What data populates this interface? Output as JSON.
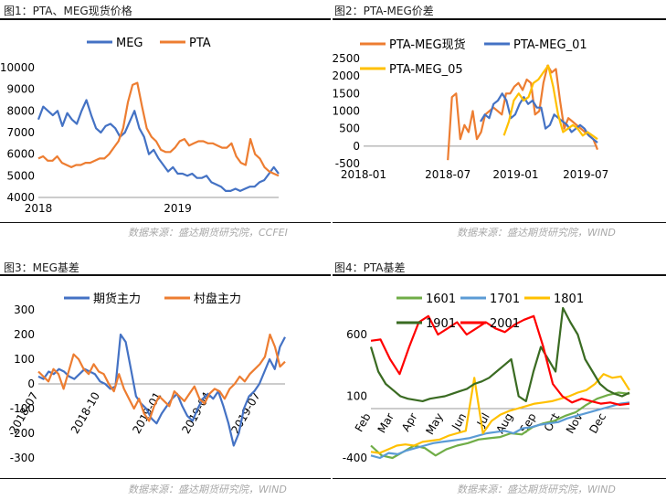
{
  "panels": [
    {
      "title": "图1：PTA、MEG现货价格",
      "source": "数据来源：盛达期货研究院，CCFEI"
    },
    {
      "title": "图2：PTA-MEG价差",
      "source": "数据来源：盛达期货研究院，WIND"
    },
    {
      "title": "图3：MEG基差",
      "source": "数据来源：盛达期货研究院，WIND"
    },
    {
      "title": "图4：PTA基差",
      "source": "数据来源：盛达期货研究院，WIND"
    }
  ],
  "chart_data": [
    {
      "type": "line",
      "ylim": [
        4000,
        10000
      ],
      "yticks": [
        4000,
        5000,
        6000,
        7000,
        8000,
        9000,
        10000
      ],
      "xticks": [
        {
          "label": "2018",
          "t": 0.0
        },
        {
          "label": "2019",
          "t": 0.58
        }
      ],
      "series": [
        {
          "name": "MEG",
          "color": "#4472C4",
          "values": [
            7600,
            8200,
            8000,
            7800,
            8000,
            7300,
            7900,
            7600,
            7400,
            8000,
            8500,
            7800,
            7200,
            7000,
            7300,
            7400,
            7200,
            6800,
            7000,
            7500,
            8000,
            7200,
            6800,
            6000,
            6200,
            5800,
            5500,
            5200,
            5400,
            5100,
            5100,
            5000,
            5100,
            4900,
            4900,
            5000,
            4700,
            4600,
            4500,
            4300,
            4300,
            4400,
            4300,
            4400,
            4500,
            4500,
            4700,
            4800,
            5100,
            5400,
            5100
          ]
        },
        {
          "name": "PTA",
          "color": "#ED7D31",
          "values": [
            5800,
            5900,
            5700,
            5700,
            5900,
            5600,
            5500,
            5400,
            5500,
            5500,
            5600,
            5600,
            5700,
            5800,
            5800,
            6000,
            6300,
            6600,
            7200,
            8400,
            9200,
            9300,
            8200,
            7200,
            6800,
            6600,
            6200,
            6100,
            6100,
            6300,
            6600,
            6700,
            6400,
            6500,
            6600,
            6600,
            6500,
            6500,
            6400,
            6300,
            6300,
            6500,
            5900,
            5600,
            5500,
            6700,
            6000,
            5800,
            5400,
            5200,
            5100,
            5000
          ]
        }
      ]
    },
    {
      "type": "line",
      "ylim": [
        -500,
        2500
      ],
      "yticks": [
        -500,
        0,
        500,
        1000,
        1500,
        2000,
        2500
      ],
      "xticks": [
        {
          "label": "2018-01",
          "t": 0.0
        },
        {
          "label": "2018-07",
          "t": 0.36
        },
        {
          "label": "2019-01",
          "t": 0.65
        },
        {
          "label": "2019-07",
          "t": 0.95
        }
      ],
      "series": [
        {
          "name": "PTA-MEG现货",
          "color": "#ED7D31",
          "start": 0.36,
          "values": [
            -400,
            1400,
            1500,
            200,
            600,
            400,
            1000,
            200,
            400,
            900,
            1000,
            1100,
            1000,
            900,
            1500,
            1500,
            1700,
            1800,
            1600,
            1900,
            1800,
            900,
            1000,
            1800,
            2300,
            2100,
            2200,
            1300,
            500,
            800,
            700,
            600,
            500,
            400,
            300,
            200,
            -100
          ]
        },
        {
          "name": "PTA-MEG_01",
          "color": "#4472C4",
          "start": 0.5,
          "values": [
            700,
            900,
            800,
            1200,
            1300,
            1500,
            1300,
            800,
            900,
            1200,
            1400,
            1200,
            1300,
            1100,
            1100,
            500,
            600,
            900,
            800,
            700,
            600,
            400,
            500,
            600,
            500,
            300,
            200,
            100
          ]
        },
        {
          "name": "PTA-MEG_05",
          "color": "#FFC000",
          "start": 0.6,
          "values": [
            300,
            700,
            1300,
            1500,
            1300,
            1400,
            1800,
            1900,
            2100,
            2300,
            1700,
            900,
            400,
            500,
            600,
            500,
            300,
            400,
            300,
            200
          ]
        }
      ]
    },
    {
      "type": "line",
      "ylim": [
        -300,
        300
      ],
      "yticks": [
        -300,
        -200,
        -100,
        0,
        100,
        200,
        300
      ],
      "xticks": [
        {
          "label": "2018-07",
          "t": 0.0
        },
        {
          "label": "2018-10",
          "t": 0.25
        },
        {
          "label": "2019-01",
          "t": 0.5
        },
        {
          "label": "2019-04",
          "t": 0.7
        },
        {
          "label": "2019-07",
          "t": 0.9
        }
      ],
      "series": [
        {
          "name": "期货主力",
          "color": "#4472C4",
          "values": [
            30,
            20,
            50,
            40,
            60,
            50,
            30,
            20,
            40,
            60,
            50,
            40,
            10,
            0,
            -20,
            -10,
            200,
            170,
            60,
            -50,
            -80,
            -100,
            -140,
            -160,
            -120,
            -90,
            -60,
            -40,
            -90,
            -130,
            -150,
            -100,
            -60,
            -40,
            -60,
            -30,
            -90,
            -160,
            -250,
            -200,
            -100,
            -50,
            -30,
            0,
            50,
            100,
            60,
            150,
            190
          ]
        },
        {
          "name": "村盘主力",
          "color": "#ED7D31",
          "values": [
            50,
            30,
            10,
            60,
            40,
            -20,
            50,
            120,
            100,
            60,
            40,
            80,
            50,
            40,
            0,
            -30,
            40,
            -20,
            -60,
            -100,
            -60,
            -120,
            -150,
            -90,
            -50,
            -70,
            -90,
            -30,
            -50,
            -70,
            -40,
            -10,
            -60,
            -80,
            -40,
            -20,
            -30,
            -60,
            -20,
            0,
            30,
            10,
            40,
            60,
            80,
            110,
            200,
            150,
            70,
            90
          ]
        }
      ]
    },
    {
      "type": "line",
      "ylim": [
        -400,
        800
      ],
      "yticks": [
        -400,
        100,
        600
      ],
      "xticks": [
        {
          "label": "Feb",
          "t": 0.0
        },
        {
          "label": "Mar",
          "t": 0.09
        },
        {
          "label": "Apr",
          "t": 0.18
        },
        {
          "label": "May",
          "t": 0.28
        },
        {
          "label": "Jun",
          "t": 0.37
        },
        {
          "label": "Jul",
          "t": 0.46
        },
        {
          "label": "Aug",
          "t": 0.55
        },
        {
          "label": "Sep",
          "t": 0.64
        },
        {
          "label": "Oct",
          "t": 0.73
        },
        {
          "label": "Nov",
          "t": 0.82
        },
        {
          "label": "Dec",
          "t": 0.91
        }
      ],
      "series": [
        {
          "name": "1601",
          "color": "#70AD47",
          "values": [
            -300,
            -380,
            -400,
            -350,
            -300,
            -320,
            -380,
            -330,
            -300,
            -280,
            -250,
            -240,
            -230,
            -200,
            -210,
            -150,
            -120,
            -100,
            -60,
            -30,
            30,
            80,
            110,
            130,
            120
          ]
        },
        {
          "name": "1701",
          "color": "#5B9BD5",
          "values": [
            -380,
            -400,
            -360,
            -370,
            -340,
            -320,
            -300,
            -280,
            -270,
            -260,
            -250,
            -240,
            -220,
            -200,
            -190,
            -180,
            -200,
            -160,
            -150,
            -130,
            -120,
            -110,
            -80,
            -60,
            -40,
            -20,
            0,
            20,
            40,
            50
          ]
        },
        {
          "name": "1801",
          "color": "#FFC000",
          "values": [
            -350,
            -360,
            -330,
            -300,
            -290,
            -300,
            -270,
            -260,
            -250,
            -220,
            -200,
            -180,
            250,
            -200,
            -100,
            -50,
            -20,
            0,
            20,
            40,
            50,
            60,
            80,
            100,
            130,
            150,
            200,
            280,
            250,
            260,
            150
          ]
        },
        {
          "name": "1901",
          "color": "#3A6B22",
          "values": [
            500,
            300,
            200,
            150,
            100,
            80,
            70,
            60,
            80,
            90,
            100,
            120,
            140,
            160,
            200,
            220,
            250,
            300,
            350,
            400,
            100,
            60,
            300,
            500,
            400,
            300,
            900,
            700,
            600,
            400,
            300,
            200,
            150,
            120,
            100,
            130
          ]
        },
        {
          "name": "2001",
          "color": "#FF0000",
          "values": [
            550,
            560,
            400,
            280,
            500,
            700,
            750,
            600,
            650,
            700,
            600,
            650,
            700,
            650,
            620,
            680,
            720,
            750,
            500,
            200,
            100,
            50,
            80,
            60,
            40,
            50,
            30,
            40
          ]
        }
      ]
    }
  ]
}
